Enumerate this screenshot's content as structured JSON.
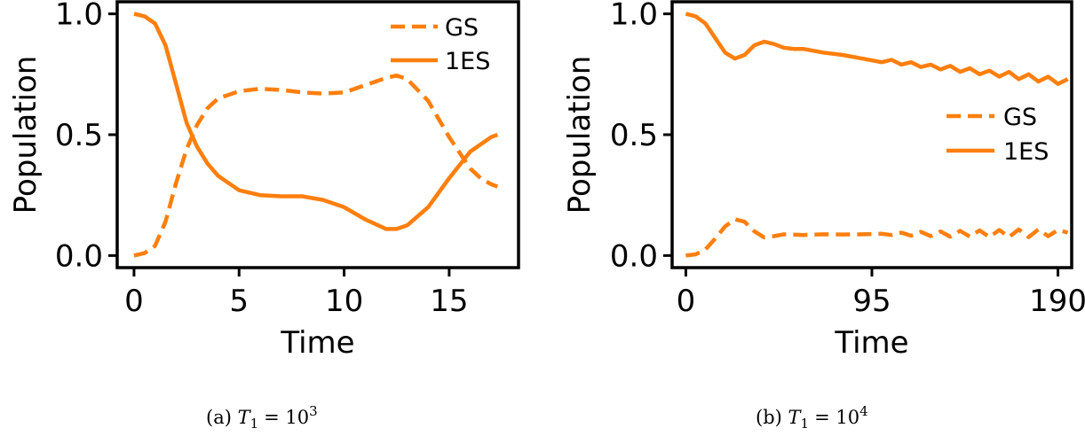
{
  "colors": {
    "series": "#ff7f0e",
    "axes": "#000000"
  },
  "chart_data": [
    {
      "type": "line",
      "xlabel": "Time",
      "ylabel": "Population",
      "xlim": [
        -0.8,
        18.3
      ],
      "ylim": [
        -0.05,
        1.05
      ],
      "xticks": [
        0,
        5,
        10,
        15
      ],
      "xtick_labels": [
        "0",
        "5",
        "10",
        "15"
      ],
      "yticks": [
        0.0,
        0.5,
        1.0
      ],
      "ytick_labels": [
        "0.0",
        "0.5",
        "1.0"
      ],
      "legend": {
        "placement": "top-right",
        "entries": [
          "GS",
          "1ES"
        ]
      },
      "series": [
        {
          "name": "GS",
          "style": "dashed",
          "x": [
            0,
            0.5,
            1,
            1.5,
            2,
            2.5,
            3,
            3.5,
            4,
            5,
            6,
            7,
            8,
            9,
            10,
            11,
            12,
            12.5,
            13,
            14,
            15,
            16,
            16.5,
            17,
            17.3
          ],
          "y": [
            0.0,
            0.01,
            0.04,
            0.14,
            0.3,
            0.44,
            0.54,
            0.61,
            0.65,
            0.68,
            0.69,
            0.685,
            0.675,
            0.67,
            0.675,
            0.705,
            0.735,
            0.745,
            0.73,
            0.64,
            0.49,
            0.36,
            0.32,
            0.295,
            0.285
          ]
        },
        {
          "name": "1ES",
          "style": "solid",
          "x": [
            0,
            0.5,
            1,
            1.5,
            2,
            2.5,
            3,
            3.5,
            4,
            5,
            6,
            7,
            8,
            9,
            10,
            11,
            12,
            12.5,
            13,
            14,
            15,
            16,
            17,
            17.3
          ],
          "y": [
            1.0,
            0.99,
            0.96,
            0.87,
            0.71,
            0.55,
            0.45,
            0.38,
            0.33,
            0.27,
            0.25,
            0.245,
            0.245,
            0.23,
            0.2,
            0.15,
            0.11,
            0.11,
            0.125,
            0.2,
            0.32,
            0.43,
            0.49,
            0.5
          ]
        }
      ]
    },
    {
      "type": "line",
      "xlabel": "Time",
      "ylabel": "Population",
      "xlim": [
        -7,
        197
      ],
      "ylim": [
        -0.05,
        1.05
      ],
      "xticks": [
        0,
        95,
        190
      ],
      "xtick_labels": [
        "0",
        "95",
        "190"
      ],
      "yticks": [
        0.0,
        0.5,
        1.0
      ],
      "ytick_labels": [
        "0.0",
        "0.5",
        "1.0"
      ],
      "legend": {
        "placement": "center-right",
        "entries": [
          "GS",
          "1ES"
        ]
      },
      "series": [
        {
          "name": "GS",
          "style": "dashed",
          "x": [
            0,
            5,
            10,
            15,
            20,
            25,
            30,
            35,
            40,
            45,
            50,
            60,
            70,
            80,
            90,
            100,
            105,
            110,
            115,
            120,
            125,
            130,
            135,
            140,
            145,
            150,
            155,
            160,
            165,
            170,
            175,
            180,
            185,
            190,
            195
          ],
          "y": [
            0.0,
            0.005,
            0.025,
            0.07,
            0.12,
            0.15,
            0.14,
            0.1,
            0.075,
            0.08,
            0.088,
            0.085,
            0.088,
            0.087,
            0.088,
            0.09,
            0.085,
            0.095,
            0.082,
            0.098,
            0.08,
            0.1,
            0.078,
            0.102,
            0.078,
            0.104,
            0.076,
            0.106,
            0.076,
            0.108,
            0.076,
            0.108,
            0.08,
            0.106,
            0.095
          ]
        },
        {
          "name": "1ES",
          "style": "solid",
          "x": [
            0,
            5,
            10,
            15,
            20,
            25,
            30,
            35,
            40,
            45,
            50,
            55,
            60,
            70,
            80,
            90,
            100,
            105,
            110,
            115,
            120,
            125,
            130,
            135,
            140,
            145,
            150,
            155,
            160,
            165,
            170,
            175,
            180,
            185,
            190,
            195
          ],
          "y": [
            1.0,
            0.99,
            0.96,
            0.9,
            0.84,
            0.815,
            0.83,
            0.87,
            0.885,
            0.875,
            0.86,
            0.855,
            0.855,
            0.84,
            0.83,
            0.815,
            0.8,
            0.81,
            0.79,
            0.8,
            0.78,
            0.79,
            0.77,
            0.785,
            0.76,
            0.775,
            0.75,
            0.765,
            0.74,
            0.76,
            0.73,
            0.75,
            0.72,
            0.74,
            0.71,
            0.73
          ]
        }
      ]
    }
  ],
  "captions": [
    {
      "label": "(a)",
      "math": "T",
      "sub": "1",
      "rel": "= 10",
      "sup": "3"
    },
    {
      "label": "(b)",
      "math": "T",
      "sub": "1",
      "rel": "= 10",
      "sup": "4"
    }
  ]
}
